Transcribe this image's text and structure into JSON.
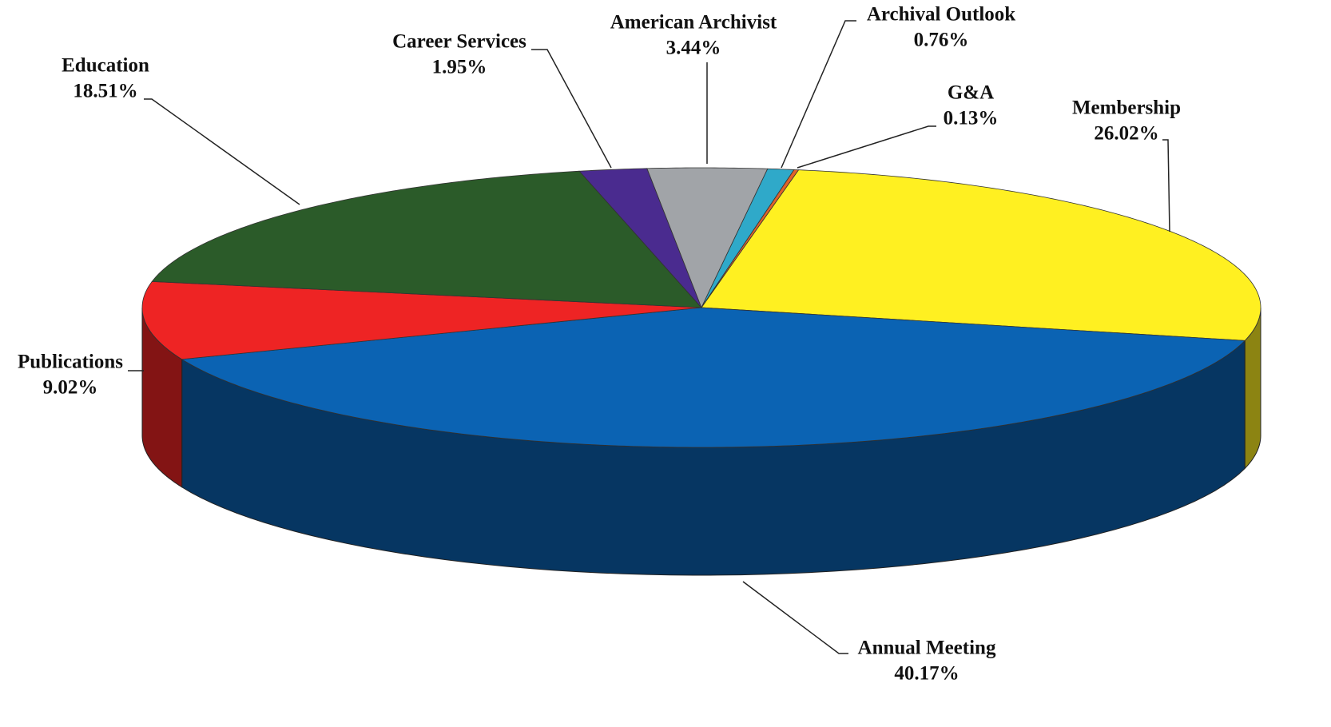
{
  "chart_data": {
    "type": "pie",
    "categories": [
      "Membership",
      "Annual Meeting",
      "Publications",
      "Education",
      "Career Services",
      "American Archivist",
      "Archival Outlook",
      "G&A"
    ],
    "values": [
      26.02,
      40.17,
      9.02,
      18.51,
      1.95,
      3.44,
      0.76,
      0.13
    ],
    "value_labels": [
      "26.02%",
      "40.17%",
      "9.02%",
      "18.51%",
      "1.95%",
      "3.44%",
      "0.76%",
      "0.13%"
    ],
    "colors": [
      "#fff021",
      "#0b63b3",
      "#ee2424",
      "#2b5b29",
      "#4a2b8f",
      "#a1a4a8",
      "#2fa9c9",
      "#e0622a"
    ]
  }
}
